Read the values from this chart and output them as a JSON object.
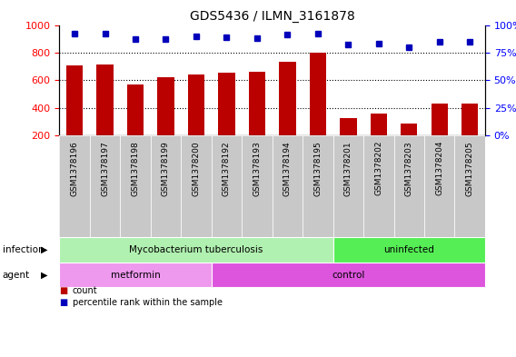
{
  "title": "GDS5436 / ILMN_3161878",
  "samples": [
    "GSM1378196",
    "GSM1378197",
    "GSM1378198",
    "GSM1378199",
    "GSM1378200",
    "GSM1378192",
    "GSM1378193",
    "GSM1378194",
    "GSM1378195",
    "GSM1378201",
    "GSM1378202",
    "GSM1378203",
    "GSM1378204",
    "GSM1378205"
  ],
  "counts": [
    710,
    715,
    570,
    620,
    645,
    655,
    665,
    735,
    800,
    325,
    360,
    285,
    435,
    430
  ],
  "percentiles": [
    92,
    92,
    87,
    87,
    90,
    89,
    88,
    91,
    92,
    82,
    83,
    80,
    85,
    85
  ],
  "ylim_left": [
    200,
    1000
  ],
  "ylim_right": [
    0,
    100
  ],
  "yticks_left": [
    200,
    400,
    600,
    800,
    1000
  ],
  "yticks_right": [
    0,
    25,
    50,
    75,
    100
  ],
  "bar_color": "#bb0000",
  "dot_color": "#0000bb",
  "infection_groups": [
    {
      "label": "Mycobacterium tuberculosis",
      "start": 0,
      "end": 9,
      "color": "#b0f0b0"
    },
    {
      "label": "uninfected",
      "start": 9,
      "end": 14,
      "color": "#55ee55"
    }
  ],
  "agent_groups": [
    {
      "label": "metformin",
      "start": 0,
      "end": 5,
      "color": "#ee99ee"
    },
    {
      "label": "control",
      "start": 5,
      "end": 14,
      "color": "#dd55dd"
    }
  ],
  "legend_items": [
    {
      "label": "count",
      "color": "#bb0000"
    },
    {
      "label": "percentile rank within the sample",
      "color": "#0000bb"
    }
  ],
  "grid_color": "black",
  "bg_color": "#d8d8d8",
  "tick_label_bg": "#c8c8c8"
}
